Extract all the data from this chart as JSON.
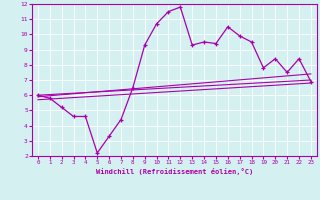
{
  "xlabel": "Windchill (Refroidissement éolien,°C)",
  "bg_color": "#d4f0f0",
  "line_color": "#aa00aa",
  "xlim": [
    -0.5,
    23.5
  ],
  "ylim": [
    2,
    12
  ],
  "xticks": [
    0,
    1,
    2,
    3,
    4,
    5,
    6,
    7,
    8,
    9,
    10,
    11,
    12,
    13,
    14,
    15,
    16,
    17,
    18,
    19,
    20,
    21,
    22,
    23
  ],
  "yticks": [
    2,
    3,
    4,
    5,
    6,
    7,
    8,
    9,
    10,
    11,
    12
  ],
  "main_x": [
    0,
    1,
    2,
    3,
    4,
    5,
    6,
    7,
    8,
    9,
    10,
    11,
    12,
    13,
    14,
    15,
    16,
    17,
    18,
    19,
    20,
    21,
    22,
    23
  ],
  "main_y": [
    6.0,
    5.8,
    5.2,
    4.6,
    4.6,
    2.2,
    3.3,
    4.4,
    6.5,
    9.3,
    10.7,
    11.5,
    11.8,
    9.3,
    9.5,
    9.4,
    10.5,
    9.9,
    9.5,
    7.8,
    8.4,
    7.5,
    8.4,
    6.9
  ],
  "line1_x": [
    0,
    23
  ],
  "line1_y": [
    6.0,
    7.0
  ],
  "line2_x": [
    0,
    23
  ],
  "line2_y": [
    5.9,
    7.4
  ],
  "line3_x": [
    0,
    23
  ],
  "line3_y": [
    5.7,
    6.8
  ]
}
